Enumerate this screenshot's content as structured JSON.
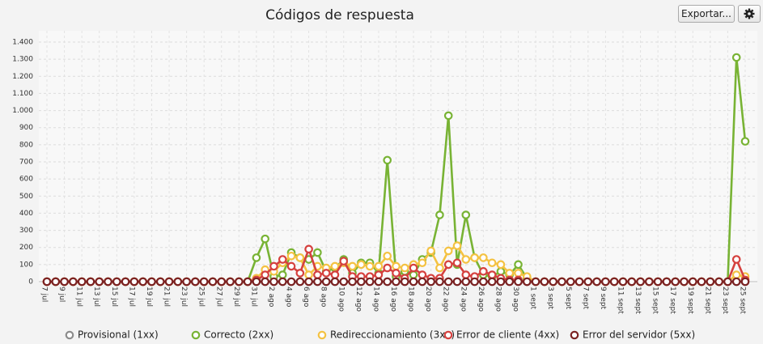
{
  "toolbar": {
    "export_button": "Exportar..."
  },
  "chart_data": {
    "type": "line",
    "title": "Códigos de respuesta",
    "grid": true,
    "legend_position": "bottom",
    "categories": [
      "7 jul",
      null,
      "9 jul",
      null,
      "11 jul",
      null,
      "13 jul",
      null,
      "15 jul",
      null,
      "17 jul",
      null,
      "19 jul",
      null,
      "21 jul",
      null,
      "23 jul",
      null,
      "25 jul",
      null,
      "27 jul",
      null,
      "29 jul",
      null,
      "31 jul",
      null,
      "2 ago",
      null,
      "4 ago",
      null,
      "6 ago",
      null,
      "8 ago",
      null,
      "10 ago",
      null,
      "12 ago",
      null,
      "14 ago",
      null,
      "16 ago",
      null,
      "18 ago",
      null,
      "20 ago",
      null,
      "22 ago",
      null,
      "24 ago",
      null,
      "26 ago",
      null,
      "28 ago",
      null,
      "30 ago",
      null,
      "1 sept",
      null,
      "3 sept",
      null,
      "5 sept",
      null,
      "7 sept",
      null,
      "9 sept",
      null,
      "11 sept",
      null,
      "13 sept",
      null,
      "15 sept",
      null,
      "17 sept",
      null,
      "19 sept",
      null,
      "21 sept",
      null,
      "23 sept",
      null,
      "25 sept"
    ],
    "ylim": [
      0,
      1400
    ],
    "yticks": [
      0,
      100,
      200,
      300,
      400,
      500,
      600,
      700,
      800,
      900,
      {
        "value": 1000,
        "label": "1.000"
      },
      {
        "value": 1100,
        "label": "1.100"
      },
      {
        "value": 1200,
        "label": "1.200"
      },
      {
        "value": 1300,
        "label": "1.300"
      },
      {
        "value": 1400,
        "label": "1.400"
      }
    ],
    "series": [
      {
        "name": "Provisional (1xx)",
        "color": "#8c8c8c",
        "values": [
          0,
          0,
          0,
          0,
          0,
          0,
          0,
          0,
          0,
          0,
          0,
          0,
          0,
          0,
          0,
          0,
          0,
          0,
          0,
          0,
          0,
          0,
          0,
          0,
          0,
          0,
          0,
          0,
          0,
          0,
          0,
          0,
          0,
          0,
          0,
          0,
          0,
          0,
          0,
          0,
          0,
          0,
          0,
          0,
          0,
          0,
          0,
          0,
          0,
          0,
          0,
          0,
          0,
          0,
          0,
          0,
          0,
          0,
          0,
          0,
          0,
          0,
          0,
          0,
          0,
          0,
          0,
          0,
          0,
          0,
          0,
          0,
          0,
          0,
          0,
          0,
          0,
          0,
          0,
          0,
          0
        ]
      },
      {
        "name": "Correcto (2xx)",
        "color": "#78b334",
        "values": [
          0,
          0,
          0,
          0,
          0,
          0,
          0,
          0,
          0,
          0,
          0,
          0,
          0,
          0,
          0,
          0,
          0,
          0,
          0,
          0,
          0,
          0,
          0,
          0,
          140,
          250,
          30,
          40,
          170,
          140,
          130,
          170,
          60,
          80,
          130,
          50,
          110,
          110,
          50,
          710,
          30,
          60,
          40,
          130,
          170,
          390,
          970,
          100,
          390,
          140,
          40,
          30,
          60,
          40,
          100,
          20,
          0,
          0,
          0,
          0,
          0,
          0,
          0,
          0,
          0,
          0,
          0,
          0,
          0,
          0,
          0,
          0,
          0,
          0,
          0,
          0,
          0,
          0,
          0,
          1310,
          820
        ]
      },
      {
        "name": "Redireccionamiento (3xx)",
        "color": "#f4c242",
        "values": [
          0,
          0,
          0,
          0,
          0,
          0,
          0,
          0,
          0,
          0,
          0,
          0,
          0,
          0,
          0,
          0,
          0,
          0,
          0,
          0,
          0,
          0,
          0,
          0,
          20,
          70,
          60,
          110,
          150,
          140,
          40,
          90,
          80,
          90,
          110,
          90,
          100,
          90,
          90,
          150,
          90,
          80,
          100,
          110,
          180,
          80,
          180,
          210,
          130,
          140,
          140,
          110,
          100,
          50,
          50,
          30,
          0,
          0,
          0,
          0,
          0,
          0,
          0,
          0,
          0,
          0,
          0,
          0,
          0,
          0,
          0,
          0,
          0,
          0,
          0,
          0,
          0,
          0,
          0,
          40,
          30
        ]
      },
      {
        "name": "Error de cliente (4xx)",
        "color": "#d5403e",
        "values": [
          0,
          0,
          0,
          0,
          0,
          0,
          0,
          0,
          0,
          0,
          0,
          0,
          0,
          0,
          0,
          0,
          0,
          0,
          0,
          0,
          0,
          0,
          0,
          0,
          10,
          40,
          90,
          130,
          90,
          50,
          190,
          40,
          50,
          40,
          120,
          30,
          30,
          30,
          40,
          80,
          50,
          20,
          80,
          40,
          20,
          20,
          100,
          110,
          40,
          30,
          60,
          40,
          20,
          10,
          10,
          0,
          0,
          0,
          0,
          0,
          0,
          0,
          0,
          0,
          0,
          0,
          0,
          0,
          0,
          0,
          0,
          0,
          0,
          0,
          0,
          0,
          0,
          0,
          0,
          130,
          10
        ]
      },
      {
        "name": "Error del servidor (5xx)",
        "color": "#7b2222",
        "values": [
          0,
          0,
          0,
          0,
          0,
          0,
          0,
          0,
          0,
          0,
          0,
          0,
          0,
          0,
          0,
          0,
          0,
          0,
          0,
          0,
          0,
          0,
          0,
          0,
          0,
          0,
          0,
          0,
          0,
          0,
          0,
          0,
          0,
          0,
          0,
          0,
          0,
          0,
          0,
          0,
          0,
          0,
          0,
          0,
          0,
          0,
          0,
          0,
          0,
          0,
          0,
          0,
          0,
          0,
          0,
          0,
          0,
          0,
          0,
          0,
          0,
          0,
          0,
          0,
          0,
          0,
          0,
          0,
          0,
          0,
          0,
          0,
          0,
          0,
          0,
          0,
          0,
          0,
          0,
          0,
          0
        ]
      }
    ]
  }
}
